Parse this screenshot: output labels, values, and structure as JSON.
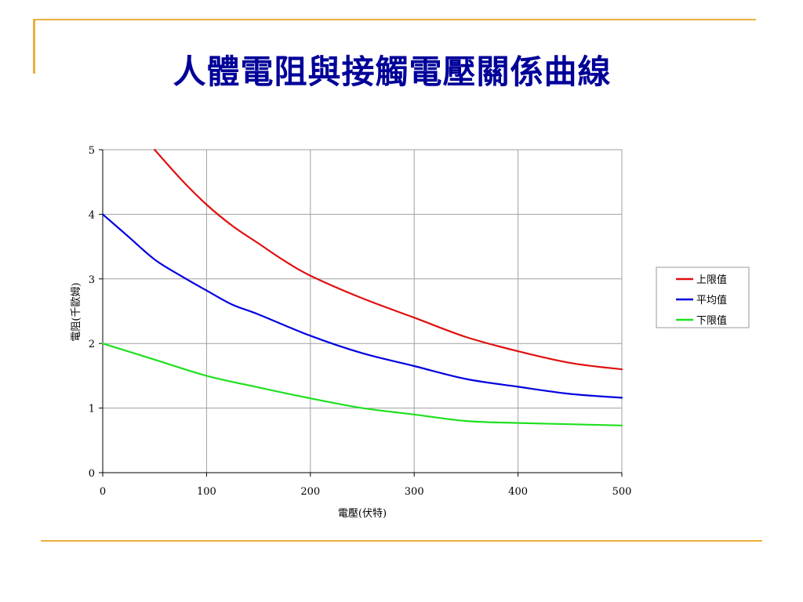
{
  "slide": {
    "title": "人體電阻與接觸電壓關係曲線",
    "accent_color": "#E8B13A",
    "title_color": "#000099"
  },
  "chart_data": {
    "type": "line",
    "title": "",
    "xlabel": "電壓(伏特)",
    "ylabel": "電阻(千歐姆)",
    "xlim": [
      0,
      500
    ],
    "ylim": [
      0,
      5
    ],
    "xticks": [
      0,
      100,
      200,
      300,
      400,
      500
    ],
    "yticks": [
      0,
      1,
      2,
      3,
      4,
      5
    ],
    "grid": true,
    "legend_position": "right",
    "series": [
      {
        "name": "上限值",
        "color": "#E01010",
        "x": [
          50,
          75,
          100,
          125,
          150,
          175,
          200,
          250,
          300,
          350,
          400,
          450,
          500
        ],
        "y": [
          5.0,
          4.55,
          4.15,
          3.82,
          3.55,
          3.28,
          3.05,
          2.7,
          2.4,
          2.1,
          1.88,
          1.7,
          1.6
        ]
      },
      {
        "name": "平均值",
        "color": "#0000E0",
        "x": [
          0,
          25,
          50,
          75,
          100,
          125,
          150,
          200,
          250,
          300,
          350,
          400,
          450,
          500
        ],
        "y": [
          4.0,
          3.65,
          3.3,
          3.05,
          2.82,
          2.6,
          2.45,
          2.12,
          1.85,
          1.65,
          1.45,
          1.33,
          1.22,
          1.16
        ]
      },
      {
        "name": "下限值",
        "color": "#1EE01E",
        "x": [
          0,
          50,
          100,
          150,
          200,
          250,
          300,
          350,
          400,
          450,
          500
        ],
        "y": [
          2.0,
          1.75,
          1.5,
          1.32,
          1.15,
          1.0,
          0.9,
          0.8,
          0.77,
          0.75,
          0.73
        ]
      }
    ]
  }
}
